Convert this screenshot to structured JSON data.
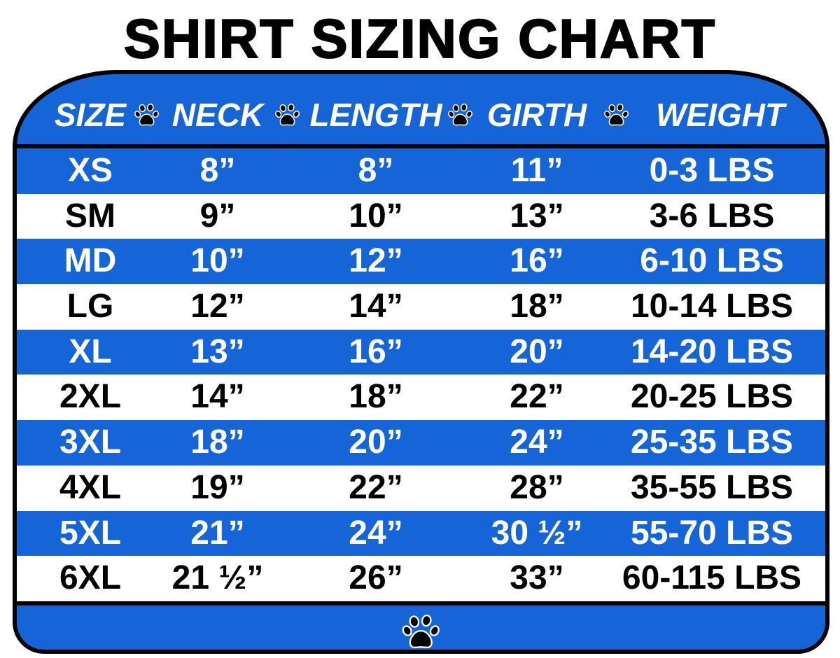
{
  "title": "SHIRT SIZING CHART",
  "colors": {
    "accent_blue": "#1565d8",
    "text_on_blue": "#ffffff",
    "text_on_white": "#000000",
    "border": "#000000"
  },
  "icons": {
    "separator": "paw-print-icon",
    "footer": "paw-print-icon"
  },
  "columns": [
    "SIZE",
    "NECK",
    "LENGTH",
    "GIRTH",
    "WEIGHT"
  ],
  "rows": [
    [
      "XS",
      "8”",
      "8”",
      "11”",
      "0-3 LBS"
    ],
    [
      "SM",
      "9”",
      "10”",
      "13”",
      "3-6 LBS"
    ],
    [
      "MD",
      "10”",
      "12”",
      "16”",
      "6-10 LBS"
    ],
    [
      "LG",
      "12”",
      "14”",
      "18”",
      "10-14 LBS"
    ],
    [
      "XL",
      "13”",
      "16”",
      "20”",
      "14-20 LBS"
    ],
    [
      "2XL",
      "14”",
      "18”",
      "22”",
      "20-25 LBS"
    ],
    [
      "3XL",
      "18”",
      "20”",
      "24”",
      "25-35 LBS"
    ],
    [
      "4XL",
      "19”",
      "22”",
      "28”",
      "35-55 LBS"
    ],
    [
      "5XL",
      "21”",
      "24”",
      "30 ½”",
      "55-70 LBS"
    ],
    [
      "6XL",
      "21 ½”",
      "26”",
      "33”",
      "60-115 LBS"
    ]
  ]
}
